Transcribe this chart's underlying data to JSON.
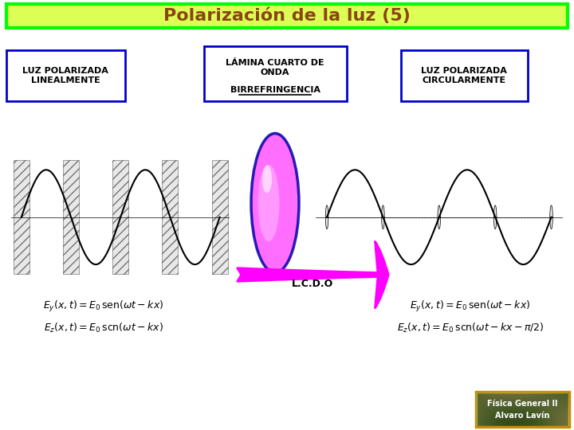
{
  "title": "Polarización de la luz (5)",
  "title_color": "#8B4513",
  "title_bg": "#DDFF55",
  "title_border": "#00FF00",
  "bg_color": "#FFFFFF",
  "box1_text": "LUZ POLARIZADA\nLINEALMENTE",
  "box2_text": "LÁMINA CUARTO DE\nONDA\nBIRREFRINGENCIA",
  "box3_text": "LUZ POLARIZADA\nCIRCULARMENTE",
  "box_border": "#0000CC",
  "box_bg": "#FFFFFF",
  "arrow_color": "#FF00FF",
  "arrow_label": "L.C.D.O",
  "eq_left_1": "$E_y(x,t)= E_0\\,\\mathrm{sen}(\\omega t - kx)$",
  "eq_left_2": "$E_z(x,t)= E_0\\,\\mathrm{sen}(\\omega t - kx)$",
  "eq_right_1": "$E_y(x,t)= E_0\\,\\mathrm{sen}(\\omega t - kx)$",
  "eq_right_2": "$E_z(x,t)= E_0\\,\\mathrm{sen}(\\omega t - kx - \\pi/2)$",
  "watermark_text1": "Física General II",
  "watermark_text2": "Alvaro Lavín",
  "watermark_bg": "#CC6600",
  "watermark_border": "#CC8800"
}
